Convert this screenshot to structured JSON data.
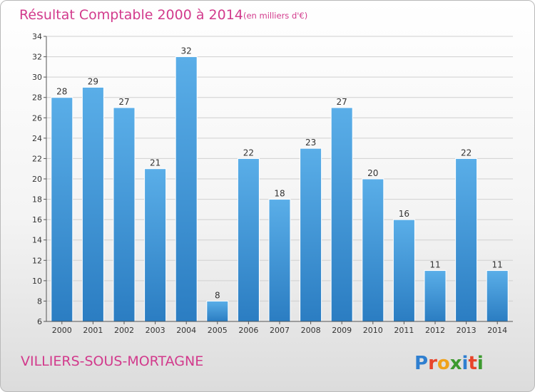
{
  "chart_data": {
    "type": "bar",
    "title": "Résultat Comptable 2000 à 2014",
    "subtitle": "(en milliers d'€)",
    "categories": [
      "2000",
      "2001",
      "2002",
      "2003",
      "2004",
      "2005",
      "2006",
      "2007",
      "2008",
      "2009",
      "2010",
      "2011",
      "2012",
      "2013",
      "2014"
    ],
    "values": [
      28,
      29,
      27,
      21,
      32,
      8,
      22,
      18,
      23,
      27,
      20,
      16,
      11,
      22,
      11
    ],
    "ylim": [
      6,
      34
    ],
    "yticks": [
      6,
      8,
      10,
      12,
      14,
      16,
      18,
      20,
      22,
      24,
      26,
      28,
      30,
      32,
      34
    ],
    "xlabel": "",
    "ylabel": "",
    "grid": true,
    "bar_color_top": "#5aaee8",
    "bar_color_bottom": "#2b7dc2"
  },
  "footer": {
    "place": "VILLIERS-SOUS-MORTAGNE",
    "logo_text": "Proxiti",
    "logo_colors": [
      "#2f7fd0",
      "#e8452b",
      "#f0a21b",
      "#3d9a2f",
      "#2f7fd0",
      "#e8452b",
      "#3d9a2f"
    ]
  },
  "colors": {
    "accent": "#d23a8c",
    "grid": "#d0d0d0"
  }
}
